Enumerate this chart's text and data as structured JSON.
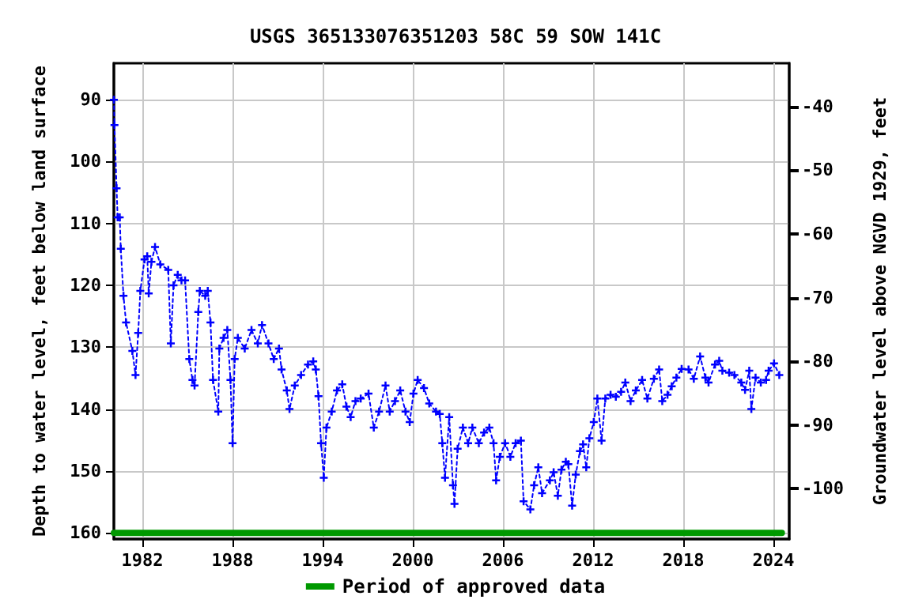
{
  "chart_data": {
    "type": "line",
    "title": "USGS 365133076351203 58C 59 SOW 141C",
    "xlabel": null,
    "ylabel": "Depth to water level, feet below land surface",
    "y2label": "Groundwater level above NGVD 1929, feet",
    "xlim": [
      1980.1,
      2025.05
    ],
    "xticks": [
      1982,
      1988,
      1994,
      2000,
      2006,
      2012,
      2018,
      2024
    ],
    "ylim": [
      161,
      84.1
    ],
    "yticks": [
      90,
      100,
      110,
      120,
      130,
      140,
      150,
      160
    ],
    "y2lim": [
      -107.9,
      -33.2
    ],
    "y2ticks": [
      -100,
      -90,
      -80,
      -70,
      -60,
      -50,
      -40
    ],
    "grid": true,
    "legend": "bottom",
    "series": [
      {
        "color": "#0000ff",
        "marker": "cross",
        "line_style": "dotted",
        "x": [
          1980.1,
          1980.14,
          1980.28,
          1980.35,
          1980.49,
          1980.56,
          1980.74,
          1980.91,
          1981.33,
          1981.54,
          1981.72,
          1981.86,
          1982.14,
          1982.32,
          1982.42,
          1982.6,
          1982.84,
          1983.19,
          1983.72,
          1983.89,
          1984.07,
          1984.35,
          1984.6,
          1984.84,
          1985.12,
          1985.33,
          1985.47,
          1985.72,
          1985.82,
          1986.18,
          1986.35,
          1986.53,
          1986.7,
          1987.05,
          1987.12,
          1987.4,
          1987.65,
          1987.86,
          1988.0,
          1988.14,
          1988.35,
          1988.81,
          1989.26,
          1989.68,
          1989.96,
          1990.39,
          1990.74,
          1991.09,
          1991.26,
          1991.61,
          1991.79,
          1992.14,
          1992.56,
          1993.02,
          1993.37,
          1993.54,
          1993.72,
          1993.89,
          1994.07,
          1994.25,
          1994.6,
          1994.95,
          1995.3,
          1995.58,
          1995.86,
          1996.18,
          1996.53,
          1997.05,
          1997.4,
          1997.75,
          1998.18,
          1998.46,
          1998.81,
          1999.16,
          1999.51,
          1999.79,
          2000.04,
          2000.32,
          2000.74,
          2001.09,
          2001.54,
          2001.79,
          2001.96,
          2002.14,
          2002.42,
          2002.67,
          2002.77,
          2002.98,
          2003.33,
          2003.68,
          2003.96,
          2004.39,
          2004.74,
          2005.09,
          2005.37,
          2005.54,
          2005.79,
          2006.14,
          2006.49,
          2006.84,
          2007.19,
          2007.37,
          2007.82,
          2008.07,
          2008.35,
          2008.6,
          2009.12,
          2009.37,
          2009.65,
          2009.89,
          2010.18,
          2010.35,
          2010.6,
          2010.84,
          2011.12,
          2011.33,
          2011.54,
          2011.75,
          2012.04,
          2012.28,
          2012.56,
          2012.81,
          2013.16,
          2013.51,
          2013.86,
          2014.14,
          2014.49,
          2014.84,
          2015.26,
          2015.61,
          2016.04,
          2016.39,
          2016.6,
          2016.95,
          2017.23,
          2017.54,
          2017.89,
          2018.35,
          2018.7,
          2019.12,
          2019.47,
          2019.68,
          2020.11,
          2020.39,
          2020.6,
          2021.05,
          2021.4,
          2021.86,
          2022.11,
          2022.39,
          2022.53,
          2022.81,
          2023.16,
          2023.51,
          2023.68,
          2024.04,
          2024.39
        ],
        "values": [
          90,
          94.1,
          104.3,
          109,
          109,
          114.1,
          121.7,
          126,
          130.6,
          134.5,
          127.7,
          120.9,
          115.8,
          115.3,
          121.3,
          116.2,
          113.8,
          116.6,
          117.5,
          129.4,
          120,
          118.3,
          119.2,
          119.2,
          131.9,
          135.3,
          136.2,
          124.3,
          120.9,
          121.7,
          120.9,
          126,
          135.3,
          140.4,
          130.2,
          128.5,
          127.2,
          135.3,
          145.5,
          131.9,
          128.5,
          130.2,
          127.2,
          129.4,
          126.4,
          129.4,
          131.9,
          130.2,
          133.6,
          137,
          140,
          136.2,
          134.5,
          132.8,
          132.3,
          133.6,
          137.9,
          145.5,
          151.1,
          143,
          140.4,
          137,
          136,
          139.6,
          141.3,
          138.7,
          138.3,
          137.5,
          143,
          140.4,
          136.2,
          140.4,
          138.7,
          137,
          140.4,
          142.1,
          137.5,
          135.3,
          136.6,
          139.1,
          140.4,
          140.8,
          145.5,
          151.1,
          141.3,
          152.3,
          155.3,
          146.4,
          143,
          145.5,
          143,
          145.5,
          143.8,
          143,
          145.5,
          151.5,
          147.7,
          145.5,
          147.7,
          145.5,
          145.1,
          154.9,
          156.2,
          152.3,
          149.4,
          153.6,
          151.5,
          150.2,
          154,
          149.8,
          148.5,
          148.9,
          155.6,
          150.6,
          146.8,
          145.7,
          149.4,
          144.7,
          142.1,
          138.3,
          145.1,
          138.3,
          137.7,
          138,
          137.2,
          135.7,
          138.7,
          137,
          135.3,
          138.3,
          135.1,
          133.6,
          138.7,
          137.7,
          136.3,
          134.9,
          133.5,
          133.6,
          135.1,
          131.5,
          134.9,
          135.7,
          132.8,
          132.2,
          133.8,
          134.1,
          134.5,
          135.7,
          136.9,
          133.8,
          140,
          134.9,
          135.7,
          135.3,
          133.8,
          132.6,
          134.5
        ]
      },
      {
        "name": "Period of approved data",
        "color": "#009900",
        "marker": "none",
        "line_style": "solid",
        "x": [
          1980.1,
          2024.56
        ],
        "values": [
          160,
          160
        ]
      }
    ]
  }
}
